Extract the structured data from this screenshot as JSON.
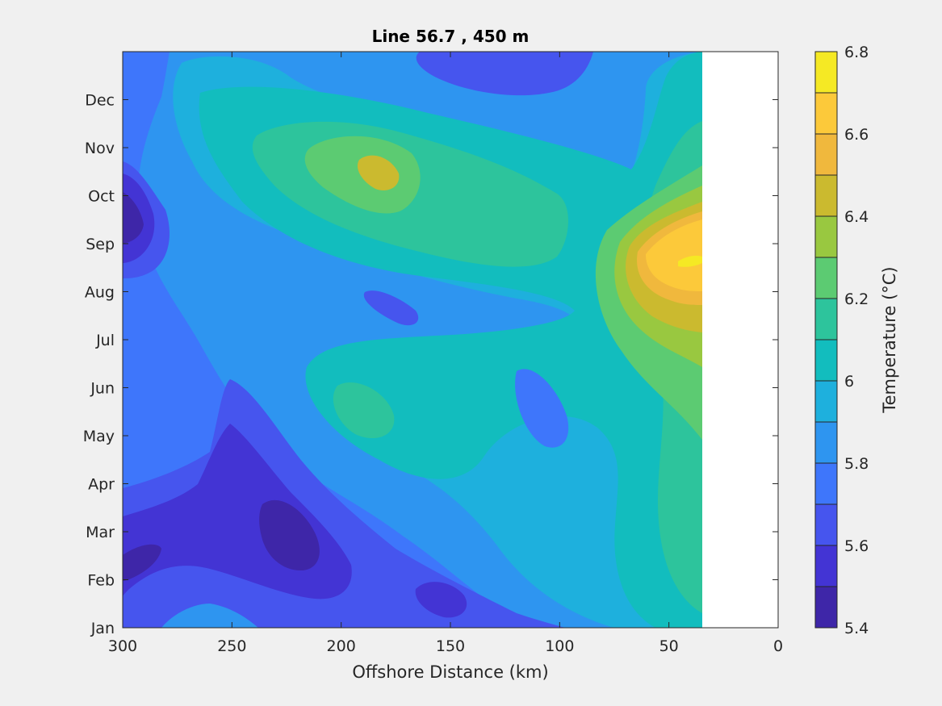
{
  "chart_data": {
    "type": "heatmap",
    "title": "Line 56.7 , 450 m",
    "xlabel": "Offshore Distance (km)",
    "ylabel": "",
    "xlim": [
      300,
      0
    ],
    "x_ticks": [
      "300",
      "250",
      "200",
      "150",
      "100",
      "50",
      "0"
    ],
    "x_tick_values": [
      300,
      250,
      200,
      150,
      100,
      50,
      0
    ],
    "y_ticks": [
      "Jan",
      "Feb",
      "Mar",
      "Apr",
      "May",
      "Jun",
      "Jul",
      "Aug",
      "Sep",
      "Oct",
      "Nov",
      "Dec"
    ],
    "y_tick_values": [
      1,
      2,
      3,
      4,
      5,
      6,
      7,
      8,
      9,
      10,
      11,
      12
    ],
    "ylim": [
      1,
      13
    ],
    "data_extent_km": [
      300,
      35
    ],
    "colorbar": {
      "label": "Temperature (°C)",
      "range": [
        5.4,
        6.8
      ],
      "ticks": [
        "5.4",
        "5.6",
        "5.8",
        "6",
        "6.2",
        "6.4",
        "6.6",
        "6.8"
      ],
      "tick_values": [
        5.4,
        5.6,
        5.8,
        6.0,
        6.2,
        6.4,
        6.6,
        6.8
      ],
      "levels": [
        5.4,
        5.5,
        5.6,
        5.7,
        5.8,
        5.9,
        6.0,
        6.1,
        6.2,
        6.3,
        6.4,
        6.5,
        6.6,
        6.7,
        6.8
      ],
      "colors": [
        "#3e26a8",
        "#4334d4",
        "#4655ee",
        "#3e76fb",
        "#2e95f0",
        "#1eb0dd",
        "#12bdbe",
        "#2dc49c",
        "#5ccb72",
        "#99c840",
        "#cbba2f",
        "#f0b83d",
        "#fcc93a",
        "#f5e924"
      ]
    },
    "grid": false,
    "features": [
      {
        "x": 185,
        "month": 10.6,
        "value": 6.5
      },
      {
        "x": 190,
        "month": 5.75,
        "value": 6.2
      },
      {
        "x": 40,
        "month": 8.6,
        "value": 6.7
      },
      {
        "x": 225,
        "month": 3.0,
        "value": 5.4
      },
      {
        "x": 292,
        "month": 2.7,
        "value": 5.4
      },
      {
        "x": 295,
        "month": 9.6,
        "value": 5.5
      },
      {
        "x": 105,
        "month": 5.7,
        "value": 5.7
      },
      {
        "x": 175,
        "month": 7.7,
        "value": 5.7
      },
      {
        "x": 100,
        "month": 12.3,
        "value": 5.7
      },
      {
        "x": 155,
        "month": 1.6,
        "value": 5.5
      }
    ]
  }
}
